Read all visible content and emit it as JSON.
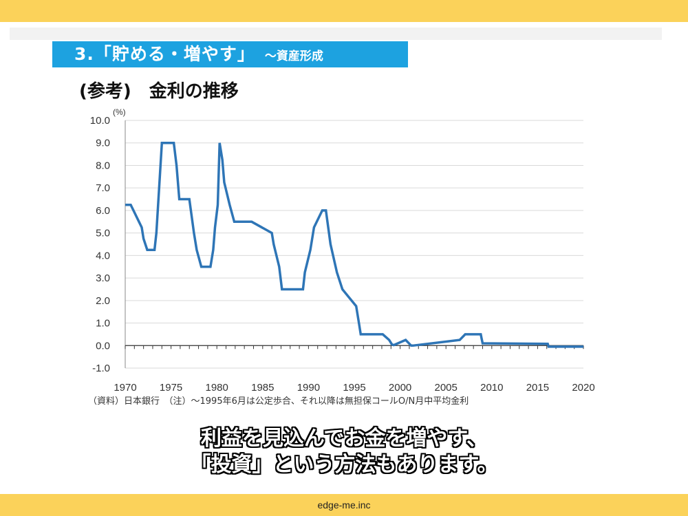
{
  "slide": {
    "section_title": "3.「貯める・増やす」",
    "section_subtitle": "～資産形成",
    "chart_heading": "(参考)　金利の推移",
    "source_note": "（資料）日本銀行　（注）～1995年6月は公定歩合、それ以降は無担保コールO/N月中平均金利",
    "caption_line1": "利益を見込んでお金を増やす、",
    "caption_line2": "「投資」という方法もあります。",
    "footer_brand": "edge-me.inc"
  },
  "colors": {
    "band": "#fbd25a",
    "banner": "#1da2e0",
    "line": "#2e75b6",
    "negative_tick": "#e02020"
  },
  "chart_data": {
    "type": "line",
    "title": "金利の推移",
    "ylabel": "(%)",
    "xlabel": "",
    "xlim": [
      1970,
      2020
    ],
    "ylim": [
      -1.0,
      10.0
    ],
    "x_ticks": [
      "1970",
      "1975",
      "1980",
      "1985",
      "1990",
      "1995",
      "2000",
      "2005",
      "2010",
      "2015",
      "2020"
    ],
    "y_ticks": [
      "10.0",
      "9.0",
      "8.0",
      "7.0",
      "6.0",
      "5.0",
      "4.0",
      "3.0",
      "2.0",
      "1.0",
      "0.0",
      "-1.0"
    ],
    "grid": true,
    "series": [
      {
        "x": [
          1970,
          1970.6,
          1970.9,
          1971.2,
          1971.5,
          1971.8,
          1972.0,
          1972.4,
          1973.2,
          1973.4,
          1973.7,
          1974.0,
          1975.3,
          1975.6,
          1975.9,
          1977.0,
          1977.5,
          1977.8,
          1978.3,
          1979.3,
          1979.6,
          1979.8,
          1980.1,
          1980.3,
          1980.6,
          1980.8,
          1981.4,
          1981.9,
          1983.8,
          1986.0,
          1986.2,
          1986.8,
          1987.1,
          1989.4,
          1989.6,
          1990.2,
          1990.6,
          1991.5,
          1991.9,
          1992.4,
          1993.1,
          1993.7,
          1995.2,
          1995.5,
          1995.7,
          1998.1,
          1998.8,
          1999.1,
          1999.3,
          2000.6,
          2001.2,
          2001.4,
          2006.5,
          2007.1,
          2008.8,
          2008.9,
          2009.0,
          2016.1,
          2016.2,
          2020.0
        ],
        "y": [
          6.25,
          6.25,
          6.0,
          5.75,
          5.5,
          5.25,
          4.75,
          4.25,
          4.25,
          5.0,
          7.0,
          9.0,
          9.0,
          8.0,
          6.5,
          6.5,
          5.0,
          4.25,
          3.5,
          3.5,
          4.25,
          5.25,
          6.25,
          9.0,
          8.25,
          7.25,
          6.25,
          5.5,
          5.5,
          5.0,
          4.5,
          3.5,
          2.5,
          2.5,
          3.25,
          4.25,
          5.25,
          6.0,
          6.0,
          4.5,
          3.25,
          2.5,
          1.75,
          1.0,
          0.5,
          0.5,
          0.25,
          0.05,
          0.02,
          0.25,
          0.0,
          0.0,
          0.25,
          0.5,
          0.5,
          0.3,
          0.1,
          0.08,
          -0.05,
          -0.05
        ]
      }
    ]
  }
}
